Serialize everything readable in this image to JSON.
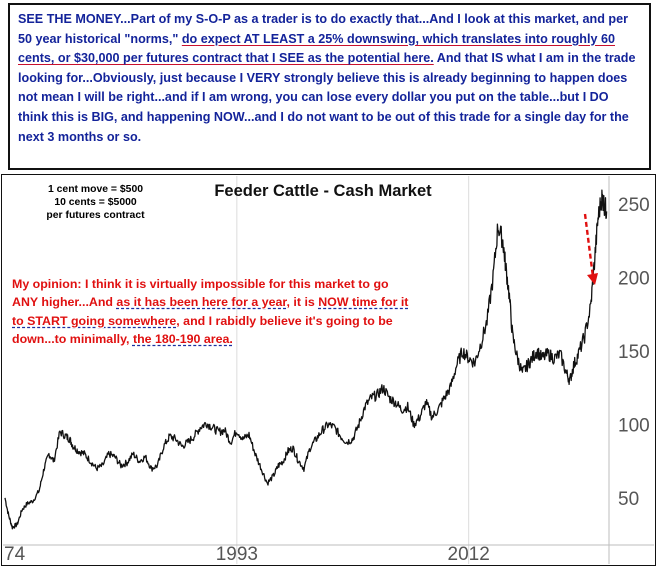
{
  "commentary": {
    "p1": "SEE THE MONEY...Part of my S-O-P as a trader is to do exactly that...And I look at this market, and per 50 year historical \"norms,\" ",
    "u1": "do expect AT LEAST a 25% downswing, which translates into roughly 60 cents, or $30,000 per futures contract that I SEE as the potential here.",
    "p2": " And that IS what I am in the trade looking for...Obviously, just because I VERY strongly believe this is already beginning to happen does not mean I will be right...and if I am wrong, you can lose every dollar you put on the table...but I DO think this is BIG, and happening NOW...and I do not want to be out of this trade for a single day for the next 3 months or so."
  },
  "contract_note": {
    "line1": "1 cent move = $500",
    "line2": "10 cents = $5000",
    "line3": "per futures contract"
  },
  "opinion": {
    "p1": "My opinion: I think it is virtually impossible for this market to go ANY higher...And ",
    "u1": "as it has been here for a year",
    "p2": ", it is ",
    "u2": "NOW time for it to START going somewhere",
    "p3": ", and I rabidly believe it's going to be down...to minimally, ",
    "u3": "the 180-190 area."
  },
  "colors": {
    "commentary_text": "#13239a",
    "commentary_underline": "#c8102e",
    "opinion_text": "#e01010",
    "opinion_underline": "#1b2fa0",
    "price_line": "#111111",
    "arrow": "#e01010"
  },
  "chart_data": {
    "type": "line",
    "title": "Feeder Cattle - Cash Market",
    "x_tick_labels": [
      "74",
      "1993",
      "2012"
    ],
    "xlim": [
      1974,
      2023.5
    ],
    "y_tick_labels": [
      "50",
      "100",
      "150",
      "200",
      "250"
    ],
    "ylim": [
      20,
      265
    ],
    "grid": "vertical only",
    "y_axis_position": "right",
    "series": [
      {
        "x": [
          1974.0,
          1974.3,
          1974.6,
          1975.0,
          1975.4,
          1975.8,
          1976.3,
          1976.8,
          1977.2,
          1977.6,
          1978.0,
          1978.5,
          1979.0,
          1979.3,
          1979.6,
          1980.0,
          1980.5,
          1981.0,
          1981.5,
          1982.0,
          1982.5,
          1983.0,
          1983.5,
          1984.0,
          1984.5,
          1985.0,
          1985.5,
          1986.0,
          1986.5,
          1987.0,
          1987.5,
          1988.0,
          1988.5,
          1989.0,
          1989.5,
          1990.0,
          1990.5,
          1991.0,
          1991.5,
          1992.0,
          1992.5,
          1993.0,
          1993.5,
          1994.0,
          1994.5,
          1995.0,
          1995.5,
          1996.0,
          1996.4,
          1996.8,
          1997.2,
          1997.6,
          1998.0,
          1998.5,
          1999.0,
          1999.5,
          2000.0,
          2000.5,
          2001.0,
          2001.5,
          2002.0,
          2002.5,
          2003.0,
          2003.5,
          2004.0,
          2004.5,
          2005.0,
          2005.5,
          2006.0,
          2006.5,
          2007.0,
          2007.5,
          2008.0,
          2008.5,
          2009.0,
          2009.5,
          2010.0,
          2010.5,
          2011.0,
          2011.5,
          2012.0,
          2012.5,
          2013.0,
          2013.5,
          2014.0,
          2014.4,
          2014.8,
          2015.0,
          2015.3,
          2015.6,
          2016.0,
          2016.4,
          2016.8,
          2017.2,
          2017.6,
          2018.0,
          2018.5,
          2019.0,
          2019.5,
          2020.0,
          2020.3,
          2020.6,
          2021.0,
          2021.5,
          2022.0,
          2022.3,
          2022.6,
          2022.9,
          2023.1,
          2023.3
        ],
        "y": [
          50,
          38,
          30,
          32,
          42,
          46,
          48,
          55,
          70,
          80,
          75,
          95,
          92,
          90,
          85,
          82,
          80,
          75,
          70,
          72,
          80,
          78,
          72,
          74,
          80,
          75,
          78,
          70,
          72,
          85,
          92,
          90,
          85,
          88,
          92,
          98,
          101,
          98,
          95,
          96,
          88,
          96,
          90,
          93,
          80,
          70,
          60,
          65,
          72,
          75,
          82,
          84,
          76,
          70,
          84,
          90,
          96,
          100,
          98,
          92,
          88,
          90,
          100,
          112,
          118,
          120,
          125,
          118,
          115,
          110,
          112,
          100,
          105,
          115,
          105,
          110,
          118,
          125,
          140,
          150,
          145,
          142,
          155,
          170,
          200,
          235,
          225,
          210,
          190,
          160,
          145,
          135,
          140,
          145,
          150,
          145,
          148,
          145,
          148,
          135,
          130,
          140,
          148,
          160,
          180,
          210,
          240,
          255,
          250,
          245
        ]
      }
    ],
    "annotation": "red downward arrow after the 2022-2023 peak"
  }
}
